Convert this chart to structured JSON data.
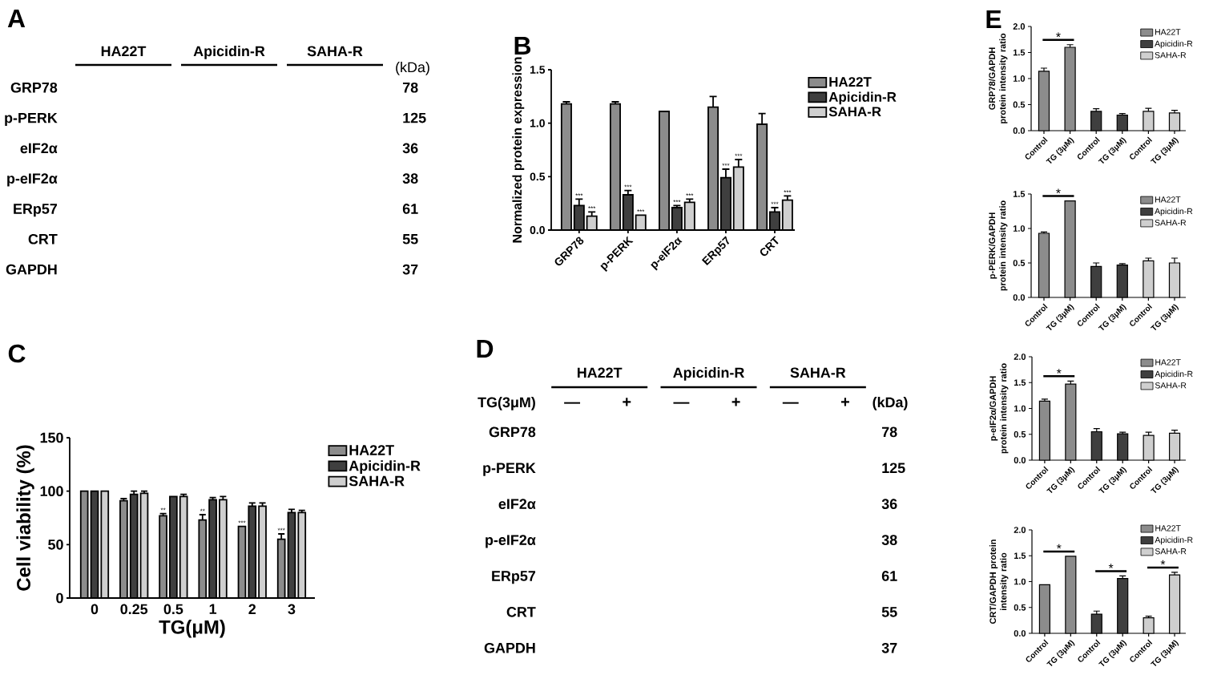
{
  "chart_data": [
    {
      "type": "other",
      "title": "A",
      "categories": [
        "HA22T",
        "Apicidin-R",
        "SAHA-R"
      ],
      "y_categories": [
        "GRP78",
        "p-PERK",
        "eIF2α",
        "p-eIF2α",
        "ERp57",
        "CRT",
        "GAPDH"
      ],
      "y2_categories": [
        "78",
        "125",
        "36",
        "38",
        "61",
        "55",
        "37"
      ],
      "annotations": [
        "(kDa)"
      ]
    },
    {
      "type": "bar",
      "title": "B",
      "ylabel": "Normalized protein expression",
      "categories": [
        "GRP78",
        "p-PERK",
        "p-eIF2α",
        "ERp57",
        "CRT"
      ],
      "ylim": [
        0,
        1.5
      ],
      "yticks": [
        {
          "value": 0,
          "label": "0.0"
        },
        0.5,
        {
          "value": 1,
          "label": "1.0"
        },
        1.5
      ],
      "legend": "right",
      "series": [
        {
          "name": "HA22T",
          "color": "#8c8c8c",
          "values": [
            1.18,
            1.18,
            1.11,
            1.15,
            0.99
          ],
          "errors": [
            0.02,
            0.02,
            null,
            0.1,
            0.1
          ]
        },
        {
          "name": "Apicidin-R",
          "color": "#3f3f3f",
          "values": [
            0.23,
            0.33,
            0.21,
            0.49,
            0.17
          ],
          "errors": [
            0.06,
            0.04,
            0.02,
            0.08,
            0.04
          ],
          "value_labels": [
            "***",
            "***",
            "***",
            "***",
            "***"
          ]
        },
        {
          "name": "SAHA-R",
          "color": "#cfcfcf",
          "values": [
            0.13,
            0.14,
            0.26,
            0.59,
            0.28
          ],
          "errors": [
            0.04,
            null,
            0.03,
            0.07,
            0.04
          ],
          "value_labels": [
            "***",
            "***",
            "***",
            "***",
            "***"
          ]
        }
      ]
    },
    {
      "type": "bar",
      "title": "C",
      "ylabel": "Cell viability (%)",
      "xlabel": "TG(μM)",
      "categories": [
        "0",
        "0.25",
        "0.5",
        "1",
        "2",
        "3"
      ],
      "ylim": [
        0,
        150
      ],
      "yticks": [
        0,
        50,
        100,
        150
      ],
      "legend": "right",
      "series": [
        {
          "name": "HA22T",
          "color": "#8c8c8c",
          "values": [
            100,
            91,
            77,
            73,
            67,
            55
          ],
          "errors": [
            null,
            2,
            2,
            5,
            null,
            5
          ],
          "value_labels": [
            null,
            null,
            "**",
            "**",
            "***",
            "***"
          ]
        },
        {
          "name": "Apicidin-R",
          "color": "#3f3f3f",
          "values": [
            100,
            97,
            95,
            92,
            86,
            80
          ],
          "errors": [
            null,
            3,
            null,
            2,
            3,
            3
          ]
        },
        {
          "name": "SAHA-R",
          "color": "#cfcfcf",
          "values": [
            100,
            98,
            95,
            92,
            86,
            80
          ],
          "errors": [
            null,
            2,
            2,
            3,
            3,
            2
          ]
        }
      ]
    },
    {
      "type": "other",
      "title": "D",
      "categories": [
        "HA22T",
        "Apicidin-R",
        "SAHA-R"
      ],
      "y_categories": [
        "GRP78",
        "p-PERK",
        "eIF2α",
        "p-eIF2α",
        "ERp57",
        "CRT",
        "GAPDH"
      ],
      "y2_categories": [
        "78",
        "125",
        "36",
        "38",
        "61",
        "55",
        "37"
      ],
      "annotations": [
        "TG(3μM)",
        "—",
        "+",
        "—",
        "+",
        "—",
        "+",
        "(kDa)"
      ]
    },
    {
      "type": "bar",
      "title": "E",
      "ylabel": "GRP78/GAPDH protein intensity ratio",
      "categories": [
        "Control",
        "TG (3μM)",
        "Control",
        "TG (3μM)",
        "Control",
        "TG (3μM)"
      ],
      "ylim": [
        0,
        2
      ],
      "yticks": [
        {
          "value": 0,
          "label": "0.0"
        },
        0.5,
        {
          "value": 1,
          "label": "1.0"
        },
        1.5,
        {
          "value": 2,
          "label": "2.0"
        }
      ],
      "legend": "top right",
      "annotations": [
        "*"
      ],
      "series": [
        {
          "name": "HA22T",
          "color": "#8c8c8c",
          "values": [
            1.14,
            1.6,
            null,
            null,
            null,
            null
          ],
          "errors": [
            0.06,
            0.05,
            null,
            null,
            null,
            null
          ]
        },
        {
          "name": "Apicidin-R",
          "color": "#3f3f3f",
          "values": [
            null,
            null,
            0.37,
            0.3,
            null,
            null
          ],
          "errors": [
            null,
            null,
            0.05,
            0.03,
            null,
            null
          ]
        },
        {
          "name": "SAHA-R",
          "color": "#cfcfcf",
          "values": [
            null,
            null,
            null,
            null,
            0.37,
            0.34
          ],
          "errors": [
            null,
            null,
            null,
            null,
            0.06,
            0.05
          ]
        }
      ]
    },
    {
      "type": "bar",
      "ylabel": "p-PERK/GAPDH protein intensity ratio",
      "categories": [
        "Control",
        "TG (3μM)",
        "Control",
        "TG (3μM)",
        "Control",
        "TG (3μM)"
      ],
      "ylim": [
        0,
        1.5
      ],
      "yticks": [
        {
          "value": 0,
          "label": "0.0"
        },
        0.5,
        {
          "value": 1,
          "label": "1.0"
        },
        1.5
      ],
      "legend": "top right",
      "annotations": [
        "*"
      ],
      "series": [
        {
          "name": "HA22T",
          "color": "#8c8c8c",
          "values": [
            0.93,
            1.4,
            null,
            null,
            null,
            null
          ],
          "errors": [
            0.02,
            null,
            null,
            null,
            null,
            null
          ]
        },
        {
          "name": "Apicidin-R",
          "color": "#3f3f3f",
          "values": [
            null,
            null,
            0.45,
            0.47,
            null,
            null
          ],
          "errors": [
            null,
            null,
            0.05,
            0.02,
            null,
            null
          ]
        },
        {
          "name": "SAHA-R",
          "color": "#cfcfcf",
          "values": [
            null,
            null,
            null,
            null,
            0.53,
            0.5
          ],
          "errors": [
            null,
            null,
            null,
            null,
            0.04,
            0.07
          ]
        }
      ]
    },
    {
      "type": "bar",
      "ylabel": "p-eIF2α/GAPDH protein intensity ratio",
      "categories": [
        "Control",
        "TG (3μM)",
        "Control",
        "TG (3μM)",
        "Control",
        "TG (3μM)"
      ],
      "ylim": [
        0,
        2
      ],
      "yticks": [
        {
          "value": 0,
          "label": "0.0"
        },
        0.5,
        {
          "value": 1,
          "label": "1.0"
        },
        1.5,
        {
          "value": 2,
          "label": "2.0"
        }
      ],
      "legend": "top right",
      "annotations": [
        "*"
      ],
      "series": [
        {
          "name": "HA22T",
          "color": "#8c8c8c",
          "values": [
            1.14,
            1.47,
            null,
            null,
            null,
            null
          ],
          "errors": [
            0.04,
            0.06,
            null,
            null,
            null,
            null
          ]
        },
        {
          "name": "Apicidin-R",
          "color": "#3f3f3f",
          "values": [
            null,
            null,
            0.55,
            0.51,
            null,
            null
          ],
          "errors": [
            null,
            null,
            0.06,
            0.03,
            null,
            null
          ]
        },
        {
          "name": "SAHA-R",
          "color": "#cfcfcf",
          "values": [
            null,
            null,
            null,
            null,
            0.48,
            0.52
          ],
          "errors": [
            null,
            null,
            null,
            null,
            0.06,
            0.06
          ]
        }
      ]
    },
    {
      "type": "bar",
      "ylabel": "CRT/GAPDH protein intensity ratio",
      "categories": [
        "Control",
        "TG (3μM)",
        "Control",
        "TG (3μM)",
        "Control",
        "TG (3μM)"
      ],
      "ylim": [
        0,
        2
      ],
      "yticks": [
        {
          "value": 0,
          "label": "0.0"
        },
        0.5,
        {
          "value": 1,
          "label": "1.0"
        },
        1.5,
        {
          "value": 2,
          "label": "2.0"
        }
      ],
      "legend": "top right",
      "annotations": [
        "*",
        "*",
        "*"
      ],
      "series": [
        {
          "name": "HA22T",
          "color": "#8c8c8c",
          "values": [
            0.94,
            1.49,
            null,
            null,
            null,
            null
          ],
          "errors": [
            null,
            null,
            null,
            null,
            null,
            null
          ]
        },
        {
          "name": "Apicidin-R",
          "color": "#3f3f3f",
          "values": [
            null,
            null,
            0.37,
            1.06,
            null,
            null
          ],
          "errors": [
            null,
            null,
            0.06,
            0.05,
            null,
            null
          ]
        },
        {
          "name": "SAHA-R",
          "color": "#cfcfcf",
          "values": [
            null,
            null,
            null,
            null,
            0.3,
            1.13
          ],
          "errors": [
            null,
            null,
            null,
            null,
            0.03,
            0.05
          ]
        }
      ]
    }
  ]
}
